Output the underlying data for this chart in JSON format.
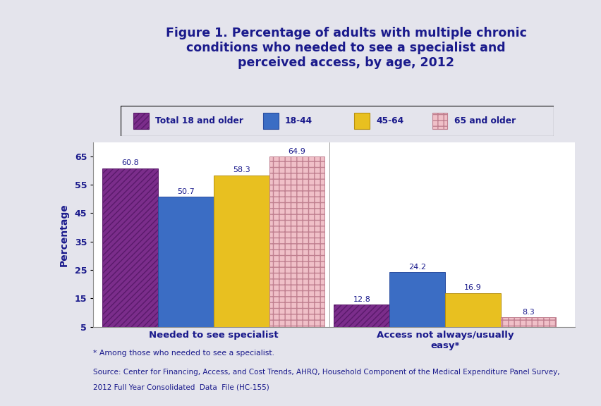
{
  "title": "Figure 1. Percentage of adults with multiple chronic\nconditions who needed to see a specialist and\nperceived access, by age, 2012",
  "ylabel": "Percentage",
  "groups": [
    "Needed to see specialist",
    "Access not always/usually\neasy*"
  ],
  "series": [
    {
      "label": "Total 18 and older",
      "values": [
        60.8,
        12.8
      ],
      "color": "#7B2D8B",
      "hatch": "////",
      "edgecolor": "#5A1A6B"
    },
    {
      "label": "18-44",
      "values": [
        50.7,
        24.2
      ],
      "color": "#3B6DC4",
      "hatch": "",
      "edgecolor": "#2A4DA0"
    },
    {
      "label": "45-64",
      "values": [
        58.3,
        16.9
      ],
      "color": "#E8C020",
      "hatch": "",
      "edgecolor": "#B89010"
    },
    {
      "label": "65 and older",
      "values": [
        64.9,
        8.3
      ],
      "color": "#F0C0C8",
      "hatch": "++",
      "edgecolor": "#C08090"
    }
  ],
  "ylim": [
    5,
    70
  ],
  "yticks": [
    5,
    15,
    25,
    35,
    45,
    55,
    65
  ],
  "bar_width": 0.12,
  "group_centers": [
    0.28,
    0.78
  ],
  "xlim": [
    0.02,
    1.06
  ],
  "bg_color": "#E4E4EC",
  "plot_bg": "#FFFFFF",
  "header_bg": "#C8CAD8",
  "text_color": "#1A1A8C",
  "footnote1": "* Among those who needed to see a specialist.",
  "footnote2": "Source: Center for Financing, Access, and Cost Trends, AHRQ, Household Component of the Medical Expenditure Panel Survey,",
  "footnote3": "2012 Full Year Consolidated  Data  File (HC-155)",
  "legend_items": [
    {
      "label": "Total 18 and older",
      "color": "#7B2D8B",
      "hatch": "////",
      "edgecolor": "#5A1A6B"
    },
    {
      "label": "18-44",
      "color": "#3B6DC4",
      "hatch": "",
      "edgecolor": "#2A4DA0"
    },
    {
      "label": "45-64",
      "color": "#E8C020",
      "hatch": "",
      "edgecolor": "#B89010"
    },
    {
      "label": "65 and older",
      "color": "#F0C0C8",
      "hatch": "++",
      "edgecolor": "#C08090"
    }
  ]
}
